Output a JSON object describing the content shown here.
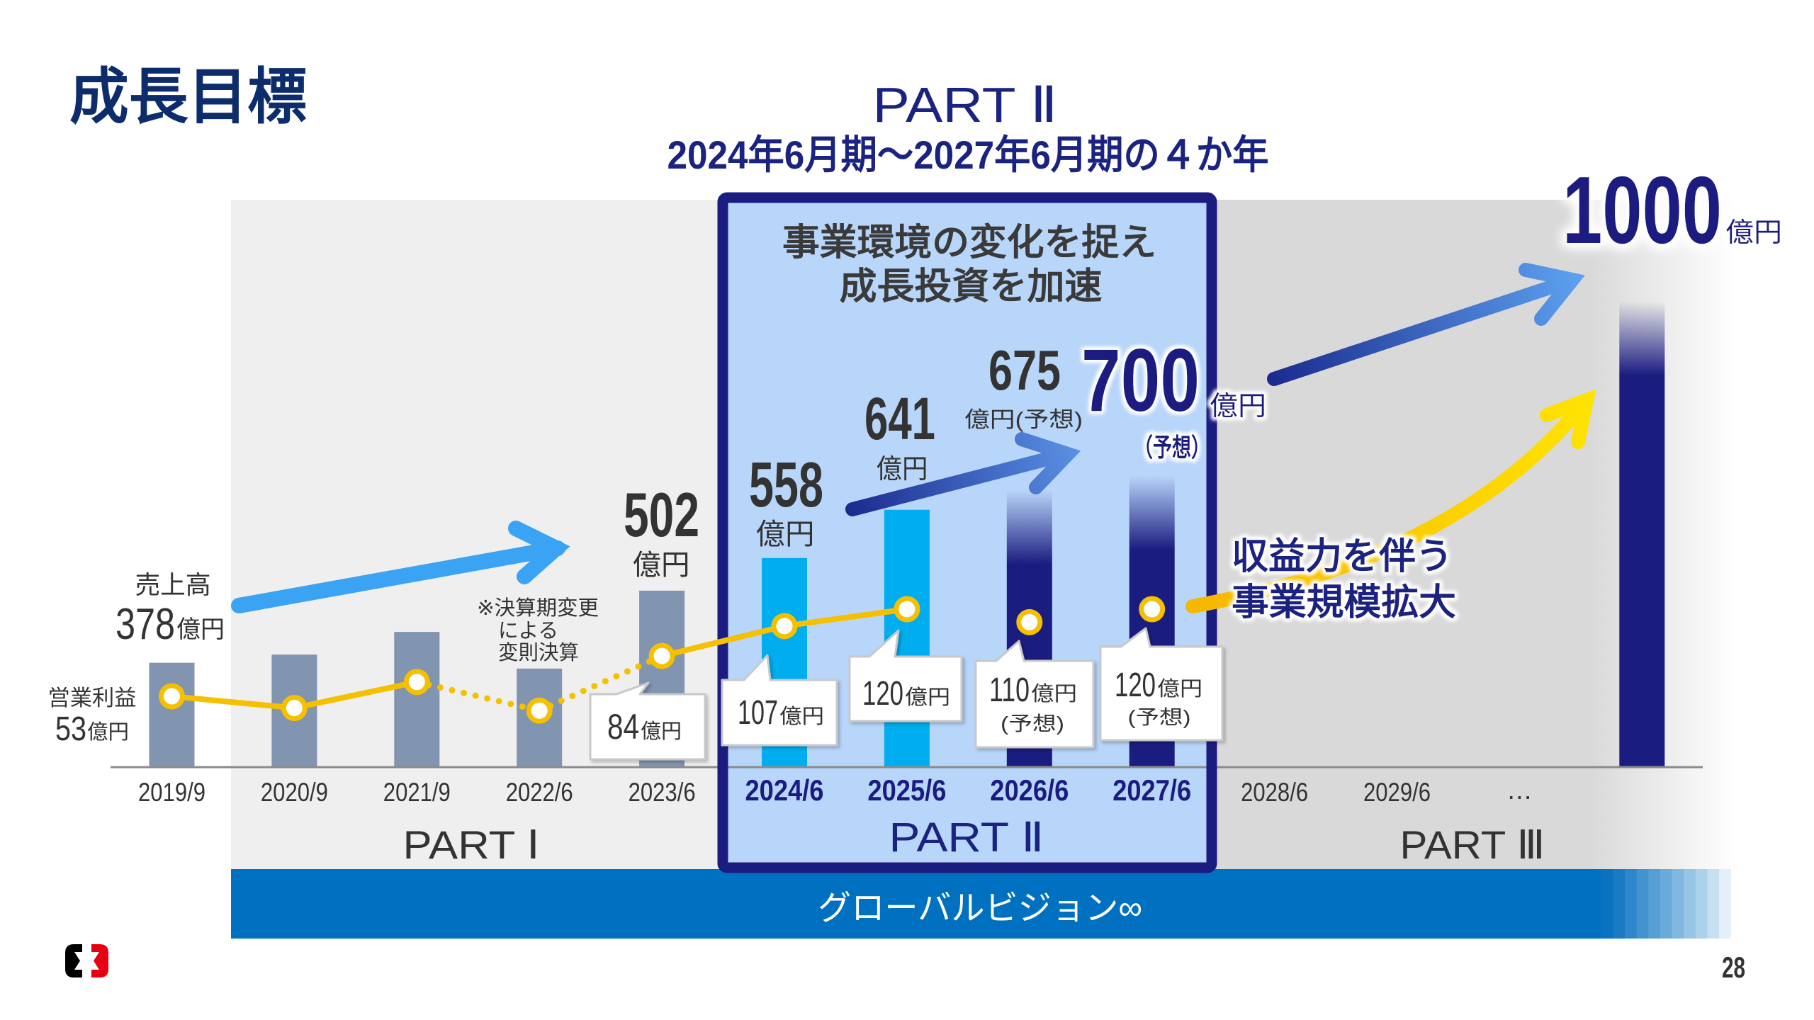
{
  "slide": {
    "title": "成長目標",
    "page_number": "28"
  },
  "header": {
    "part_label": "PART Ⅱ",
    "period": "2024年6月期～2027年6月期の４か年"
  },
  "part2_box": {
    "headline": [
      "事業環境の変化を捉え",
      "成長投資を加速"
    ]
  },
  "revenue": {
    "title": "売上高",
    "labels": [
      {
        "category": "2019/9",
        "value": "378",
        "unit": "億円"
      },
      {
        "category": "2023/6",
        "value": "502",
        "unit": "億円"
      },
      {
        "category": "2024/6",
        "value": "558",
        "unit": "億円"
      },
      {
        "category": "2025/6",
        "value": "641",
        "unit": "億円"
      },
      {
        "category": "2026/6",
        "value": "675",
        "unit": "億円(予想)"
      },
      {
        "category": "2027/6",
        "value": "700",
        "unit": "億円",
        "note": "（予想）"
      },
      {
        "category": "PART Ⅲ",
        "value": "1000",
        "unit": "億円"
      }
    ]
  },
  "operating_profit": {
    "title": "営業利益",
    "labels": [
      {
        "category": "2019/9",
        "value": "53",
        "unit": "億円"
      },
      {
        "category": "2023/6",
        "value": "84",
        "unit": "億円"
      },
      {
        "category": "2024/6",
        "value": "107",
        "unit": "億円"
      },
      {
        "category": "2025/6",
        "value": "120",
        "unit": "億円"
      },
      {
        "category": "2026/6",
        "value": "110",
        "unit": "億円",
        "note": "(予想)"
      },
      {
        "category": "2027/6",
        "value": "120",
        "unit": "億円",
        "note": "(予想)"
      }
    ]
  },
  "note": [
    "※決算期変更",
    "による",
    "変則決算"
  ],
  "growth_message": [
    "収益力を伴う",
    "事業規模拡大"
  ],
  "parts": [
    "PART Ⅰ",
    "PART Ⅱ",
    "PART Ⅲ"
  ],
  "banner": {
    "text": "グローバルビジョン∞"
  },
  "icons": {
    "logo": "company-logo-icon",
    "arrows": [
      "growth-arrow-light-blue",
      "growth-arrow-navy",
      "growth-arrow-gradient",
      "growth-arrow-yellow"
    ]
  },
  "colors": {
    "title": "#0c2c6b",
    "navy_text": "#1b2380",
    "past": "#8194b0",
    "recent": "#00aeef",
    "plan": "#1b1c80",
    "op_line": "#f5c000",
    "part1_bg": "#efefef",
    "part3_bg": "#d9d9d9",
    "part2_box_fill": "#b8d6fa",
    "part2_box_border": "#1b1c80",
    "banner": "#0070c0",
    "arrow_light_blue": "#3ba3f3",
    "logo_black": "#000000",
    "logo_red": "#e60012"
  },
  "chart_data": {
    "type": "bar",
    "title": "成長目標",
    "subtitle": "PART Ⅱ 2024年6月期～2027年6月期の４か年",
    "xlabel": "",
    "ylabel": "",
    "y_axis": "none (no ticks; values labeled inline)",
    "grid": false,
    "legend": "inline labels (売上高, 営業利益)",
    "categories": [
      "2019/9",
      "2020/9",
      "2021/9",
      "2022/6",
      "2023/6",
      "2024/6",
      "2025/6",
      "2026/6",
      "2027/6",
      "2028/6",
      "2029/6",
      "…",
      ""
    ],
    "series": [
      {
        "name": "売上高",
        "unit": "億円",
        "type": "bar",
        "values": [
          378,
          392,
          431,
          368,
          502,
          558,
          641,
          675,
          700,
          null,
          null,
          null,
          1000
        ],
        "labeled": [
          true,
          false,
          false,
          false,
          true,
          true,
          true,
          true,
          true,
          false,
          false,
          false,
          true
        ],
        "status": [
          "actual",
          "actual",
          "actual",
          "actual",
          "actual",
          "actual",
          "actual",
          "forecast",
          "forecast",
          null,
          null,
          null,
          "target"
        ],
        "bar_style": [
          "past",
          "past",
          "past",
          "past",
          "past",
          "recent",
          "recent",
          "plan",
          "plan",
          null,
          null,
          null,
          "plan"
        ]
      },
      {
        "name": "営業利益",
        "unit": "億円",
        "type": "line",
        "values": [
          53,
          44,
          64,
          42,
          84,
          107,
          120,
          110,
          120,
          null,
          null,
          null,
          null
        ],
        "labeled": [
          true,
          false,
          false,
          false,
          true,
          true,
          true,
          true,
          true,
          false,
          false,
          false,
          false
        ],
        "status": [
          "actual",
          "actual",
          "actual",
          "actual",
          "actual",
          "actual",
          "actual",
          "forecast",
          "forecast",
          null,
          null,
          null,
          null
        ],
        "segment_styles": [
          "solid",
          "solid",
          "dotted",
          "dotted",
          "solid",
          "solid",
          "none",
          "none",
          "none",
          "none",
          "none",
          "none"
        ]
      }
    ],
    "parts": [
      {
        "label": "PART Ⅰ",
        "from": "2019/9",
        "to": "2023/6"
      },
      {
        "label": "PART Ⅱ",
        "from": "2024/6",
        "to": "2027/6",
        "description": "2024年6月期～2027年6月期の４か年"
      },
      {
        "label": "PART Ⅲ",
        "from": "2028/6",
        "to": "…",
        "target_revenue": 1000
      }
    ],
    "annotations": [
      {
        "text": "※決算期変更による変則決算",
        "target": "2022/6"
      },
      {
        "text": "事業環境の変化を捉え 成長投資を加速",
        "target": "PART Ⅱ"
      },
      {
        "text": "収益力を伴う 事業規模拡大",
        "target": "PART Ⅲ"
      },
      {
        "text": "グローバルビジョン∞",
        "target": "all parts"
      }
    ]
  }
}
